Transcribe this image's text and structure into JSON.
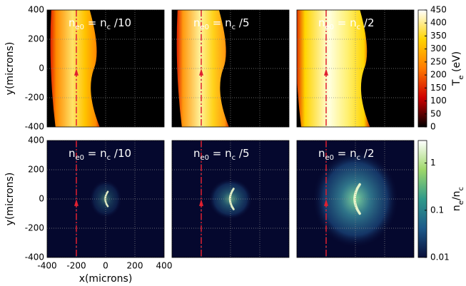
{
  "chart_data": [
    {
      "type": "heatmap",
      "annotation": [
        "n",
        "e0",
        " = n",
        "c",
        " /10"
      ],
      "ylabel": "y(microns)",
      "xlim": [
        -400,
        400
      ],
      "xticks": [
        -400,
        -200,
        0,
        200,
        400
      ],
      "ylim": [
        -400,
        400
      ],
      "yticks": [
        -400,
        -200,
        0,
        200,
        400
      ],
      "grid": true
    },
    {
      "type": "heatmap",
      "annotation": [
        "n",
        "e0",
        " = n",
        "c",
        " /5"
      ],
      "xlim": [
        -400,
        400
      ],
      "xticks": [
        -400,
        -200,
        0,
        200,
        400
      ],
      "ylim": [
        -400,
        400
      ],
      "yticks": [
        -400,
        -200,
        0,
        200,
        400
      ],
      "grid": true
    },
    {
      "type": "heatmap",
      "annotation": [
        "n",
        "e0",
        " = n",
        "c",
        " /2"
      ],
      "xlim": [
        -400,
        400
      ],
      "xticks": [
        -400,
        -200,
        0,
        200,
        400
      ],
      "ylim": [
        -400,
        400
      ],
      "yticks": [
        -400,
        -200,
        0,
        200,
        400
      ],
      "grid": true,
      "colorbar": {
        "label": [
          "T",
          "e",
          " (eV)"
        ],
        "lim": [
          0,
          450
        ],
        "ticks": [
          0,
          50,
          100,
          150,
          200,
          250,
          300,
          350,
          400,
          450
        ],
        "log": false,
        "colors": [
          "#000000",
          "#d00000",
          "#ff7a00",
          "#ffd400",
          "#ffffff"
        ]
      }
    },
    {
      "type": "heatmap",
      "annotation": [
        "n",
        "e0",
        " = n",
        "c",
        " /10"
      ],
      "xlabel": "x(microns)",
      "ylabel": "y(microns)",
      "xlim": [
        -400,
        400
      ],
      "xticks": [
        -400,
        -200,
        0,
        200,
        400
      ],
      "ylim": [
        -400,
        400
      ],
      "yticks": [
        -400,
        -200,
        0,
        200,
        400
      ],
      "grid": true
    },
    {
      "type": "heatmap",
      "annotation": [
        "n",
        "e0",
        " = n",
        "c",
        " /5"
      ],
      "xlim": [
        -400,
        400
      ],
      "xticks": [
        -400,
        -200,
        0,
        200,
        400
      ],
      "ylim": [
        -400,
        400
      ],
      "yticks": [
        -400,
        -200,
        0,
        200,
        400
      ],
      "grid": true
    },
    {
      "type": "heatmap",
      "annotation": [
        "n",
        "e0",
        " = n",
        "c",
        " /2"
      ],
      "xlim": [
        -400,
        400
      ],
      "xticks": [
        -400,
        -200,
        0,
        200,
        400
      ],
      "ylim": [
        -400,
        400
      ],
      "yticks": [
        -400,
        -200,
        0,
        200,
        400
      ],
      "grid": true,
      "colorbar": {
        "label": [
          "n",
          "e",
          "/n",
          "c"
        ],
        "lim": [
          0.01,
          3
        ],
        "ticks": [
          0.01,
          0.1,
          1
        ],
        "log": true,
        "colors": [
          "#0a0f3a",
          "#1d5a8a",
          "#2f9a8a",
          "#9ed86a",
          "#ffffff"
        ]
      }
    }
  ]
}
